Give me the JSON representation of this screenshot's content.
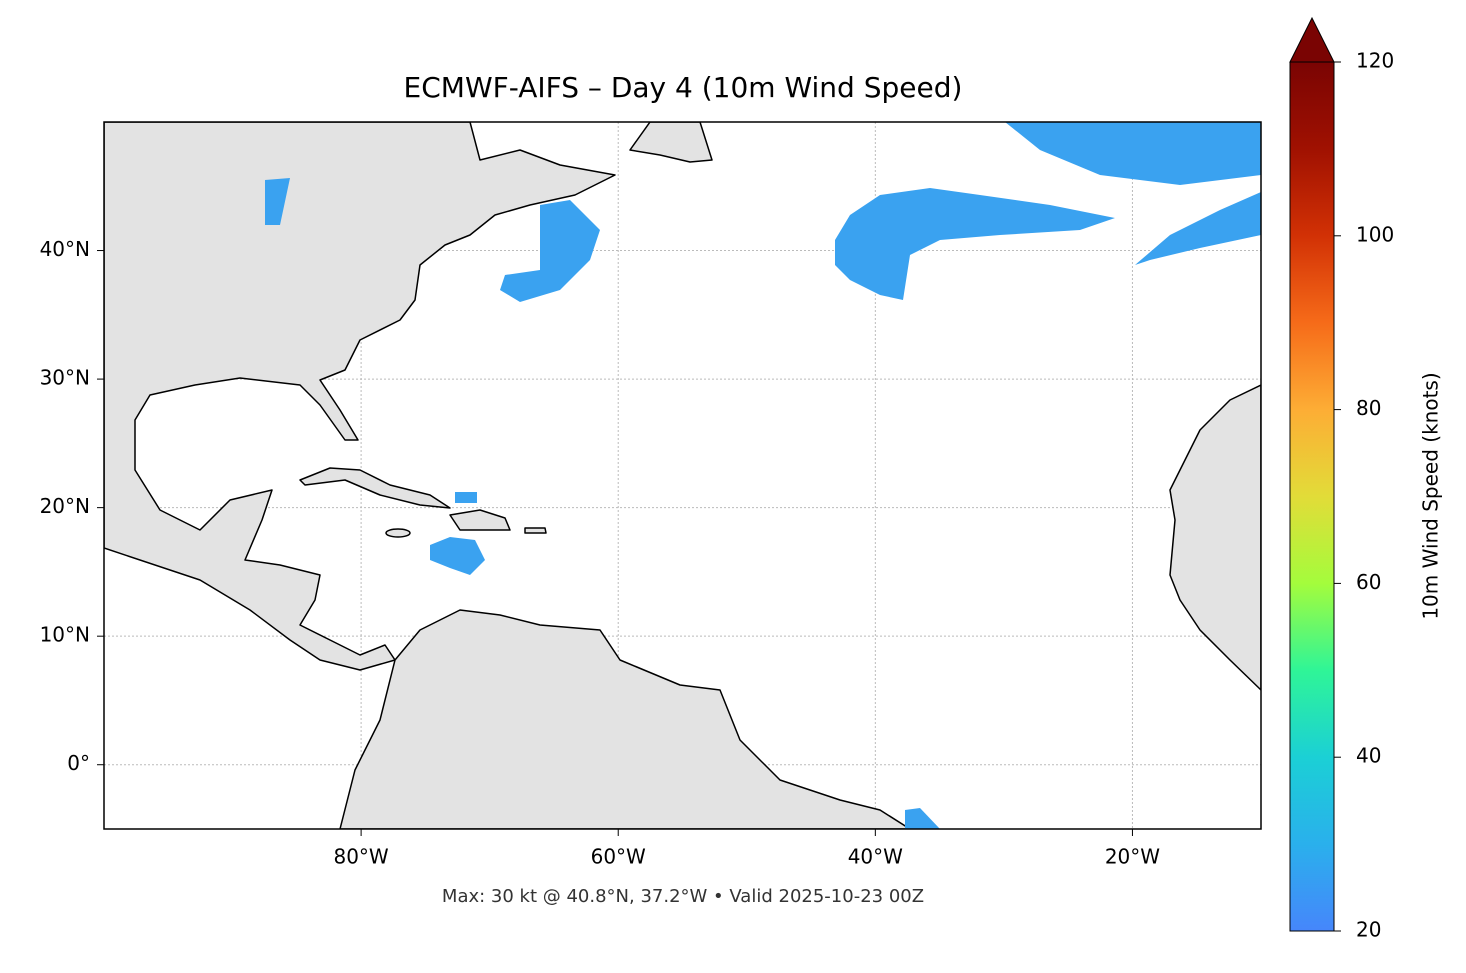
{
  "chart_data": {
    "type": "map",
    "title": "ECMWF-AIFS – Day 4 (10m Wind Speed)",
    "note": "Max: 30 kt @ 40.8°N, 37.2°W • Valid 2025-10-23 00Z",
    "xlim": [
      -100,
      -10
    ],
    "ylim": [
      -5,
      50
    ],
    "xticks": [
      {
        "value": -80,
        "label": "80°W"
      },
      {
        "value": -60,
        "label": "60°W"
      },
      {
        "value": -40,
        "label": "40°W"
      },
      {
        "value": -20,
        "label": "20°W"
      }
    ],
    "yticks": [
      {
        "value": 0,
        "label": "0°"
      },
      {
        "value": 10,
        "label": "10°N"
      },
      {
        "value": 20,
        "label": "20°N"
      },
      {
        "value": 30,
        "label": "30°N"
      },
      {
        "value": 40,
        "label": "40°N"
      }
    ],
    "grid": true,
    "colorbar": {
      "label": "10m Wind Speed (knots)",
      "lim": [
        20,
        120
      ],
      "ticks": [
        20,
        40,
        60,
        80,
        100,
        120
      ]
    }
  }
}
